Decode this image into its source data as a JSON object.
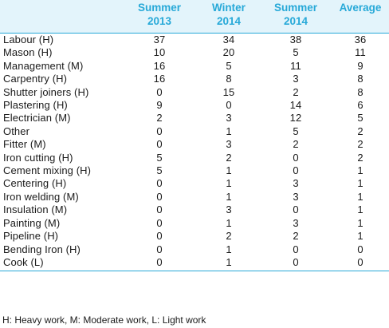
{
  "table": {
    "headers": [
      "",
      "Summer\n2013",
      "Winter\n2014",
      "Summer\n2014",
      "Average"
    ],
    "rows": [
      [
        "Labour  (H)",
        "37",
        "34",
        "38",
        "36"
      ],
      [
        "Mason  (H)",
        "10",
        "20",
        "5",
        "11"
      ],
      [
        "Management  (M)",
        "16",
        "5",
        "11",
        "9"
      ],
      [
        "Carpentry  (H)",
        "16",
        "8",
        "3",
        "8"
      ],
      [
        "Shutter joiners  (H)",
        "0",
        "15",
        "2",
        "8"
      ],
      [
        "Plastering  (H)",
        "9",
        "0",
        "14",
        "6"
      ],
      [
        "Electrician  (M)",
        "2",
        "3",
        "12",
        "5"
      ],
      [
        "Other",
        "0",
        "1",
        "5",
        "2"
      ],
      [
        "Fitter  (M)",
        "0",
        "3",
        "2",
        "2"
      ],
      [
        "Iron cutting  (H)",
        "5",
        "2",
        "0",
        "2"
      ],
      [
        "Cement mixing  (H)",
        "5",
        "1",
        "0",
        "1"
      ],
      [
        "Centering  (H)",
        "0",
        "1",
        "3",
        "1"
      ],
      [
        "Iron welding  (M)",
        "0",
        "1",
        "3",
        "1"
      ],
      [
        "Insulation  (M)",
        "0",
        "3",
        "0",
        "1"
      ],
      [
        "Painting  (M)",
        "0",
        "1",
        "3",
        "1"
      ],
      [
        "Pipeline  (H)",
        "0",
        "2",
        "2",
        "1"
      ],
      [
        "Bending Iron  (H)",
        "0",
        "1",
        "0",
        "0"
      ],
      [
        "Cook  (L)",
        "0",
        "1",
        "0",
        "0"
      ]
    ]
  },
  "footnote": "H: Heavy work, M: Moderate work, L: Light work",
  "colors": {
    "header_text": "#27a9d8",
    "header_bg": "#e3f4fb",
    "rule": "#27a9d8"
  }
}
